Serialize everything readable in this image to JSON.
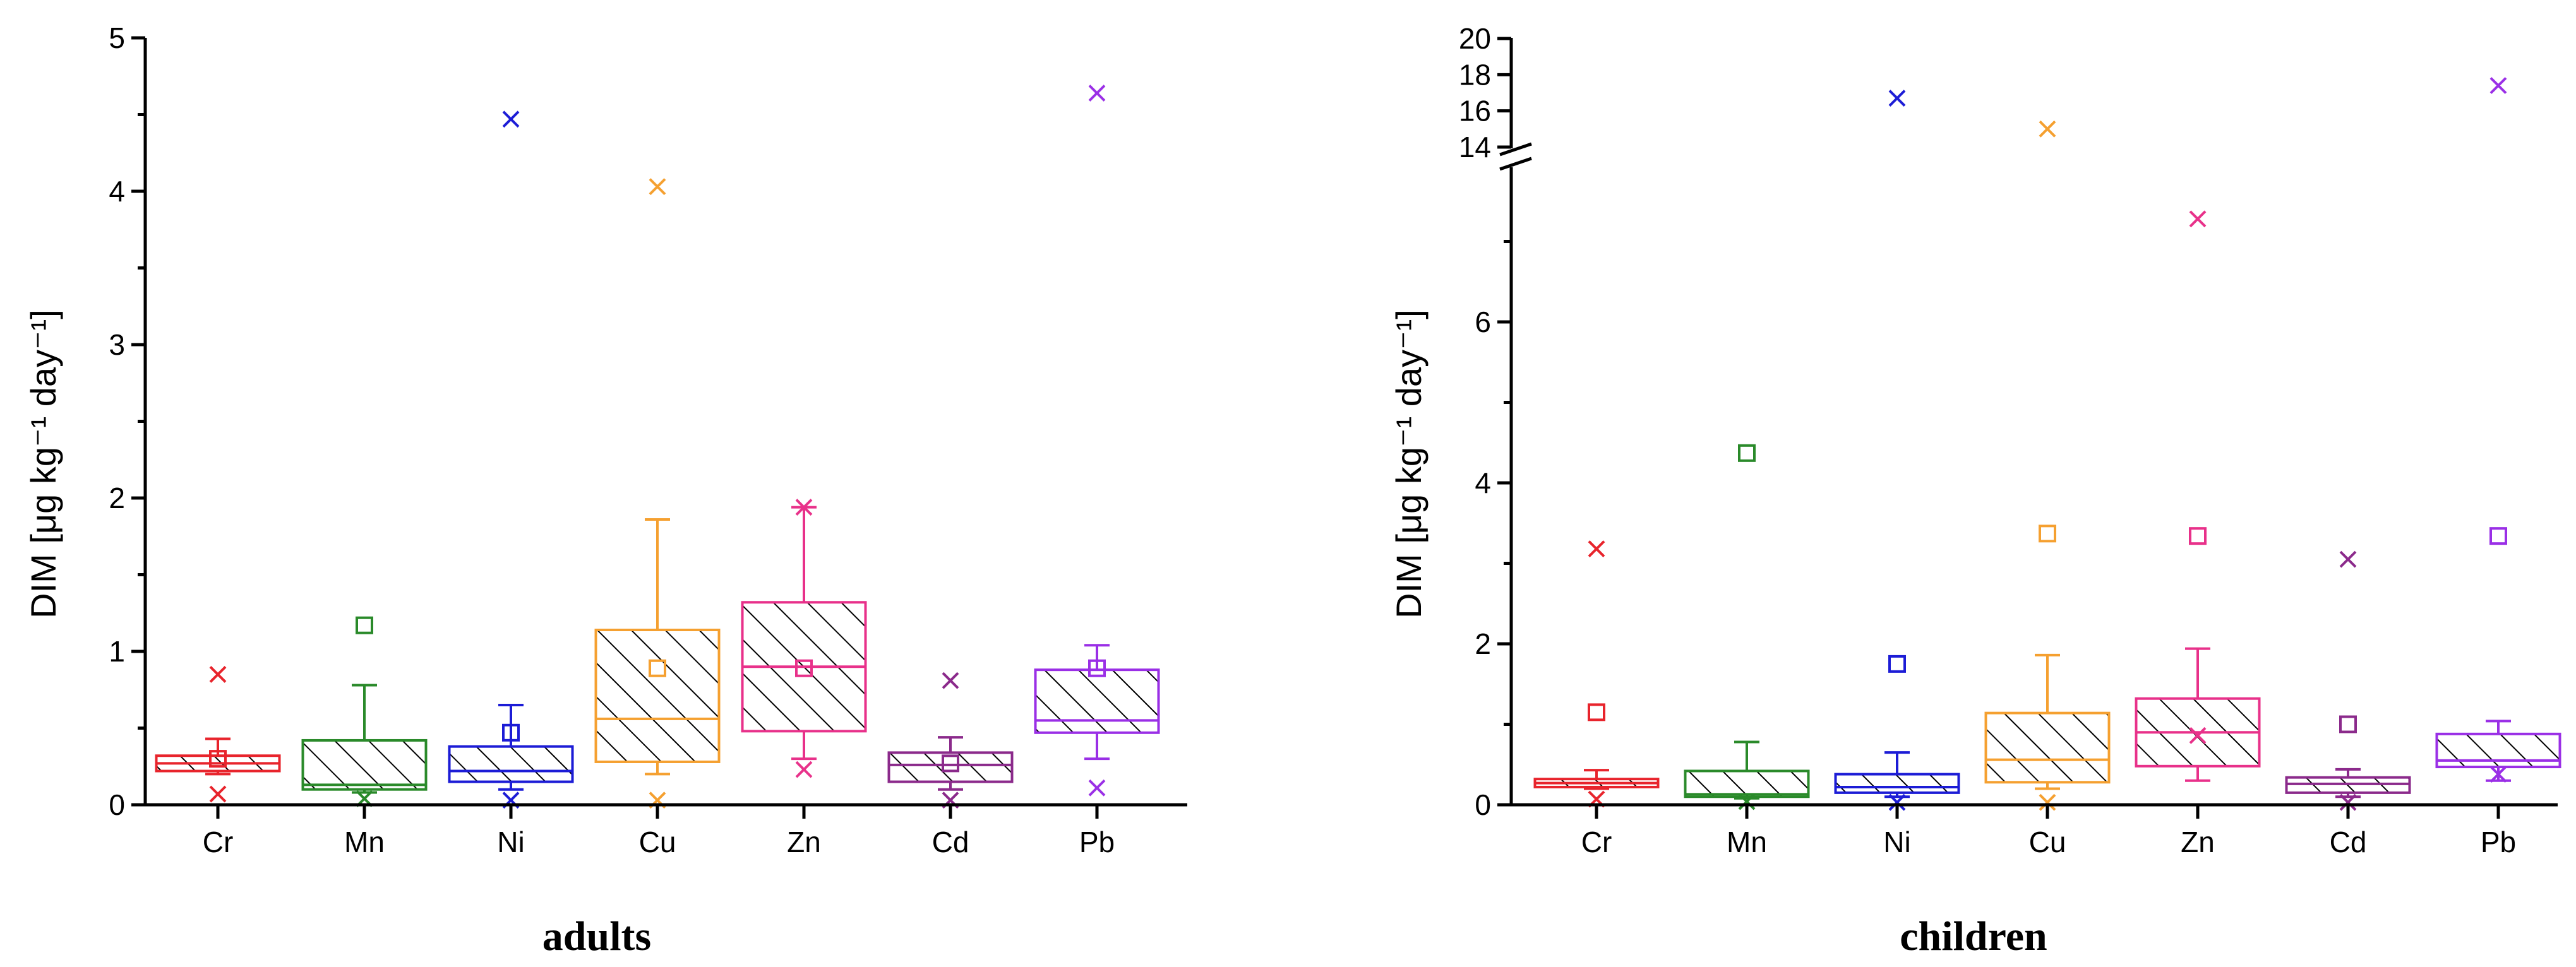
{
  "chart_data": [
    {
      "type": "box",
      "caption": "adults",
      "ylabel": "DIM [μg kg⁻¹ day⁻¹]",
      "ylim": [
        0,
        5
      ],
      "yticks": [
        "0",
        "1",
        "2",
        "3",
        "4",
        "5"
      ],
      "categories": [
        "Cr",
        "Mn",
        "Ni",
        "Cu",
        "Zn",
        "Cd",
        "Pb"
      ],
      "boxes": [
        {
          "name": "Cr",
          "color": "#e8242c",
          "whisker_low": 0.2,
          "q1": 0.22,
          "median": 0.27,
          "q3": 0.32,
          "whisker_high": 0.43,
          "mean": 0.3,
          "outliers": [
            0.85,
            0.07
          ]
        },
        {
          "name": "Mn",
          "color": "#2a8a2a",
          "whisker_low": 0.08,
          "q1": 0.1,
          "median": 0.13,
          "q3": 0.42,
          "whisker_high": 0.78,
          "mean": 1.17,
          "outliers": [
            0.04
          ]
        },
        {
          "name": "Ni",
          "color": "#1c1cd6",
          "whisker_low": 0.1,
          "q1": 0.15,
          "median": 0.22,
          "q3": 0.38,
          "whisker_high": 0.65,
          "mean": 0.47,
          "outliers": [
            4.47,
            0.03
          ]
        },
        {
          "name": "Cu",
          "color": "#f5a030",
          "whisker_low": 0.2,
          "q1": 0.28,
          "median": 0.56,
          "q3": 1.14,
          "whisker_high": 1.86,
          "mean": 0.89,
          "outliers": [
            4.03,
            0.03
          ]
        },
        {
          "name": "Zn",
          "color": "#e8318a",
          "whisker_low": 0.3,
          "q1": 0.48,
          "median": 0.9,
          "q3": 1.32,
          "whisker_high": 1.94,
          "mean": 0.89,
          "outliers": [
            1.94,
            0.23
          ]
        },
        {
          "name": "Cd",
          "color": "#8b2a8b",
          "whisker_low": 0.1,
          "q1": 0.15,
          "median": 0.26,
          "q3": 0.34,
          "whisker_high": 0.44,
          "mean": 0.27,
          "outliers": [
            0.81,
            0.03
          ]
        },
        {
          "name": "Pb",
          "color": "#9a2fe6",
          "whisker_low": 0.3,
          "q1": 0.47,
          "median": 0.55,
          "q3": 0.88,
          "whisker_high": 1.04,
          "mean": 0.89,
          "outliers": [
            4.64,
            0.11
          ]
        }
      ]
    },
    {
      "type": "box",
      "caption": "children",
      "ylabel": "DIM [μg kg⁻¹ day⁻¹]",
      "ylim_lower": [
        0,
        8
      ],
      "ylim_upper": [
        13.5,
        20
      ],
      "yticks_lower": [
        "0",
        "2",
        "4",
        "6"
      ],
      "yticks_upper": [
        "14",
        "16",
        "18",
        "20"
      ],
      "categories": [
        "Cr",
        "Mn",
        "Ni",
        "Cu",
        "Zn",
        "Cd",
        "Pb"
      ],
      "boxes": [
        {
          "name": "Cr",
          "color": "#e8242c",
          "whisker_low": 0.2,
          "q1": 0.22,
          "median": 0.27,
          "q3": 0.32,
          "whisker_high": 0.43,
          "mean": 1.15,
          "outliers": [
            3.18,
            0.07
          ]
        },
        {
          "name": "Mn",
          "color": "#2a8a2a",
          "whisker_low": 0.08,
          "q1": 0.1,
          "median": 0.13,
          "q3": 0.42,
          "whisker_high": 0.78,
          "mean": 4.37,
          "outliers": [
            0.04
          ]
        },
        {
          "name": "Ni",
          "color": "#1c1cd6",
          "whisker_low": 0.1,
          "q1": 0.15,
          "median": 0.22,
          "q3": 0.38,
          "whisker_high": 0.65,
          "mean": 1.75,
          "outliers": [
            16.7,
            0.03
          ]
        },
        {
          "name": "Cu",
          "color": "#f5a030",
          "whisker_low": 0.2,
          "q1": 0.28,
          "median": 0.56,
          "q3": 1.14,
          "whisker_high": 1.86,
          "mean": 3.37,
          "outliers": [
            15.0,
            0.03
          ]
        },
        {
          "name": "Zn",
          "color": "#e8318a",
          "whisker_low": 0.3,
          "q1": 0.48,
          "median": 0.9,
          "q3": 1.32,
          "whisker_high": 1.94,
          "mean": 3.34,
          "outliers": [
            7.28,
            0.86
          ]
        },
        {
          "name": "Cd",
          "color": "#8b2a8b",
          "whisker_low": 0.1,
          "q1": 0.15,
          "median": 0.26,
          "q3": 0.34,
          "whisker_high": 0.44,
          "mean": 1.0,
          "outliers": [
            3.05,
            0.03
          ]
        },
        {
          "name": "Pb",
          "color": "#9a2fe6",
          "whisker_low": 0.3,
          "q1": 0.47,
          "median": 0.55,
          "q3": 0.88,
          "whisker_high": 1.04,
          "mean": 3.34,
          "outliers": [
            17.4,
            0.38
          ]
        }
      ]
    }
  ]
}
